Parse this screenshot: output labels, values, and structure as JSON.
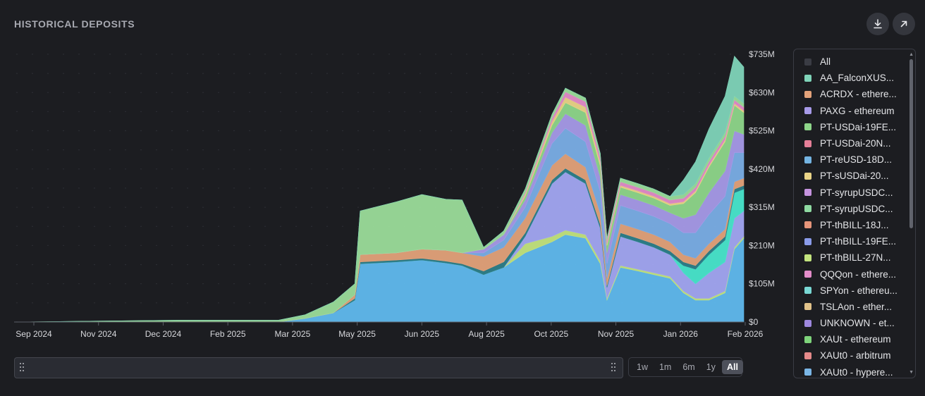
{
  "header": {
    "title": "HISTORICAL DEPOSITS",
    "download_icon": "download-icon",
    "expand_icon": "arrow-up-right-icon"
  },
  "legend": {
    "items": [
      {
        "label": "All",
        "color": "#3a3c44"
      },
      {
        "label": "AA_FalconXUS...",
        "color": "#7fd4b9"
      },
      {
        "label": "ACRDX - ethere...",
        "color": "#e3a27a"
      },
      {
        "label": "PAXG - ethereum",
        "color": "#a79ae8"
      },
      {
        "label": "PT-USDai-19FE...",
        "color": "#8ed68a"
      },
      {
        "label": "PT-USDai-20N...",
        "color": "#e57f98"
      },
      {
        "label": "PT-reUSD-18D...",
        "color": "#74b4e2"
      },
      {
        "label": "PT-sUSDai-20...",
        "color": "#ead487"
      },
      {
        "label": "PT-syrupUSDC...",
        "color": "#c593df"
      },
      {
        "label": "PT-syrupUSDC...",
        "color": "#8fdaa2"
      },
      {
        "label": "PT-thBILL-18J...",
        "color": "#e6957a"
      },
      {
        "label": "PT-thBILL-19FE...",
        "color": "#8a9be9"
      },
      {
        "label": "PT-thBILL-27N...",
        "color": "#c3e47e"
      },
      {
        "label": "QQQon - ethere...",
        "color": "#e38cc9"
      },
      {
        "label": "SPYon - ethereu...",
        "color": "#79d8d4"
      },
      {
        "label": "TSLAon - ether...",
        "color": "#e1c28a"
      },
      {
        "label": "UNKNOWN - et...",
        "color": "#9e88df"
      },
      {
        "label": "XAUt - ethereum",
        "color": "#7ed47b"
      },
      {
        "label": "XAUt0 - arbitrum",
        "color": "#e58a8a"
      },
      {
        "label": "XAUt0 - hypere...",
        "color": "#7ab6e6"
      }
    ]
  },
  "controls": {
    "range_buttons": [
      "1w",
      "1m",
      "6m",
      "1y",
      "All"
    ],
    "active_range": "All"
  },
  "chart_data": {
    "type": "area",
    "stacked": true,
    "x_ticks": [
      "Sep 2024",
      "Nov 2024",
      "Dec 2024",
      "Feb 2025",
      "Mar 2025",
      "May 2025",
      "Jun 2025",
      "Aug 2025",
      "Oct 2025",
      "Nov 2025",
      "Jan 2026",
      "Feb 2026"
    ],
    "y_ticks": [
      "$0",
      "$105M",
      "$210M",
      "$315M",
      "$420M",
      "$525M",
      "$630M",
      "$735M"
    ],
    "ylim": [
      0,
      735
    ],
    "grid": true,
    "dates": [
      "2024-08-20",
      "2024-12-20",
      "2025-01-20",
      "2025-02-20",
      "2025-03-05",
      "2025-03-25",
      "2025-04-15",
      "2025-05-01",
      "2025-05-05",
      "2025-06-01",
      "2025-06-20",
      "2025-07-08",
      "2025-07-20",
      "2025-08-05",
      "2025-08-20",
      "2025-09-05",
      "2025-09-25",
      "2025-10-05",
      "2025-10-20",
      "2025-10-31",
      "2025-11-05",
      "2025-11-15",
      "2025-11-28",
      "2025-12-10",
      "2025-12-22",
      "2026-01-01",
      "2026-01-10",
      "2026-01-20",
      "2026-02-01",
      "2026-02-08",
      "2026-02-15"
    ],
    "series": [
      {
        "name": "XAUt0 - hypere...",
        "color": "#60b9ee",
        "values": [
          0,
          0,
          0,
          0,
          0,
          10,
          25,
          60,
          160,
          165,
          170,
          162,
          155,
          130,
          150,
          190,
          220,
          240,
          230,
          160,
          60,
          150,
          140,
          130,
          120,
          80,
          60,
          60,
          80,
          200,
          230
        ]
      },
      {
        "name": "PT-thBILL-27N...",
        "color": "#c3e47e",
        "values": [
          0,
          0,
          0,
          0,
          0,
          0,
          0,
          0,
          0,
          0,
          0,
          0,
          0,
          0,
          0,
          25,
          15,
          12,
          10,
          8,
          5,
          5,
          5,
          5,
          5,
          5,
          5,
          5,
          5,
          5,
          5
        ]
      },
      {
        "name": "PT-thBILL-19FE...",
        "color": "#a2a6f2",
        "values": [
          0,
          0,
          0,
          0,
          0,
          0,
          0,
          0,
          0,
          0,
          0,
          0,
          0,
          0,
          0,
          20,
          145,
          160,
          140,
          90,
          30,
          80,
          75,
          70,
          60,
          50,
          40,
          70,
          80,
          80,
          70
        ]
      },
      {
        "name": "SPYon - ethereu...",
        "color": "#49e6cc",
        "values": [
          0,
          0,
          0,
          0,
          0,
          0,
          0,
          0,
          0,
          0,
          0,
          0,
          0,
          0,
          0,
          0,
          0,
          0,
          0,
          0,
          0,
          0,
          0,
          0,
          0,
          20,
          40,
          50,
          60,
          70,
          60
        ]
      },
      {
        "name": "PT-USDai-20N...",
        "color": "#2e7f8a",
        "values": [
          0,
          0,
          0,
          0,
          0,
          0,
          0,
          5,
          5,
          5,
          5,
          5,
          5,
          10,
          15,
          10,
          10,
          10,
          10,
          10,
          5,
          10,
          10,
          10,
          10,
          10,
          10,
          10,
          10,
          10,
          10
        ]
      },
      {
        "name": "ACRDX - ethere...",
        "color": "#e3a27a",
        "values": [
          0,
          0,
          0,
          0,
          0,
          0,
          0,
          10,
          20,
          20,
          25,
          30,
          30,
          40,
          40,
          40,
          40,
          40,
          35,
          30,
          20,
          25,
          25,
          25,
          25,
          20,
          20,
          20,
          20,
          20,
          20
        ]
      },
      {
        "name": "PT-syrupUSDC...",
        "color": "#7aaee6",
        "values": [
          0,
          0,
          0,
          0,
          0,
          0,
          0,
          0,
          0,
          0,
          0,
          0,
          0,
          10,
          20,
          30,
          60,
          70,
          70,
          60,
          40,
          50,
          50,
          50,
          50,
          60,
          70,
          80,
          90,
          80,
          70
        ]
      },
      {
        "name": "PAXG - ethereum",
        "color": "#a79ae8",
        "values": [
          0,
          0,
          0,
          0,
          0,
          0,
          0,
          0,
          0,
          0,
          0,
          0,
          0,
          10,
          15,
          20,
          30,
          40,
          45,
          40,
          30,
          30,
          30,
          30,
          30,
          40,
          50,
          60,
          70,
          60,
          50
        ]
      },
      {
        "name": "XAUt - ethereum",
        "color": "#8ed68a",
        "values": [
          0,
          0,
          0,
          0,
          0,
          0,
          0,
          0,
          0,
          0,
          0,
          0,
          0,
          0,
          0,
          10,
          20,
          30,
          35,
          30,
          20,
          20,
          20,
          20,
          20,
          40,
          60,
          70,
          80,
          70,
          60
        ]
      },
      {
        "name": "PT-sUSDai-20...",
        "color": "#ead487",
        "values": [
          0,
          0,
          0,
          0,
          0,
          0,
          0,
          0,
          0,
          0,
          0,
          0,
          0,
          0,
          0,
          5,
          10,
          15,
          15,
          10,
          5,
          5,
          5,
          5,
          5,
          5,
          5,
          5,
          5,
          5,
          5
        ]
      },
      {
        "name": "QQQon - ethere...",
        "color": "#e38cc9",
        "values": [
          0,
          0,
          0,
          0,
          0,
          0,
          0,
          0,
          0,
          0,
          0,
          0,
          0,
          0,
          0,
          5,
          10,
          15,
          15,
          15,
          10,
          10,
          10,
          10,
          10,
          10,
          10,
          10,
          10,
          10,
          10
        ]
      },
      {
        "name": "PT-USDai-19FE...",
        "color": "#9bdc9a",
        "values": [
          0,
          5,
          5,
          5,
          5,
          10,
          30,
          30,
          120,
          140,
          150,
          140,
          145,
          5,
          10,
          10,
          10,
          10,
          10,
          10,
          5,
          10,
          10,
          10,
          10,
          10,
          10,
          10,
          10,
          10,
          10
        ]
      },
      {
        "name": "AA_FalconXUS...",
        "color": "#7fd4b9",
        "values": [
          0,
          0,
          0,
          0,
          0,
          0,
          0,
          0,
          0,
          0,
          0,
          0,
          0,
          0,
          0,
          0,
          0,
          0,
          0,
          0,
          0,
          0,
          0,
          0,
          0,
          40,
          60,
          80,
          100,
          110,
          100
        ]
      }
    ]
  }
}
